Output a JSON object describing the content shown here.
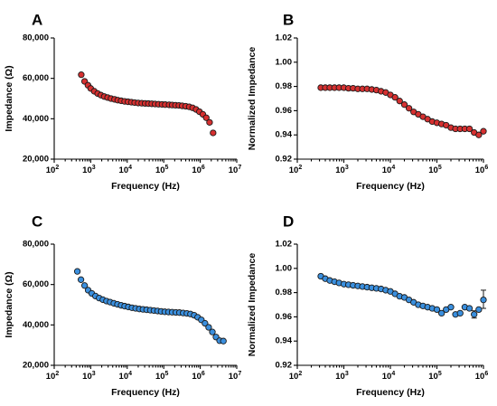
{
  "colors": {
    "red": "#d63030",
    "blue": "#3a8fde",
    "edge": "#1a1a1a"
  },
  "chart_data": [
    {
      "panel": "A",
      "type": "scatter",
      "color": "red",
      "xlabel": "Frequency (Hz)",
      "ylabel": "Impedance (Ω)",
      "xscale": "log",
      "xlim": [
        100,
        10000000
      ],
      "ylim": [
        20000,
        80000
      ],
      "xticks": [
        100,
        1000,
        10000,
        100000,
        1000000,
        10000000
      ],
      "yticks": [
        20000,
        40000,
        60000,
        80000
      ],
      "ytick_labels": [
        "20,000",
        "40,000",
        "60,000",
        "80,000"
      ],
      "points": [
        [
          550,
          61800
        ],
        [
          680,
          58500
        ],
        [
          840,
          56600
        ],
        [
          1000,
          55000
        ],
        [
          1250,
          53600
        ],
        [
          1550,
          52500
        ],
        [
          1900,
          51700
        ],
        [
          2350,
          51000
        ],
        [
          2900,
          50500
        ],
        [
          3600,
          50000
        ],
        [
          4500,
          49600
        ],
        [
          5500,
          49200
        ],
        [
          6800,
          48900
        ],
        [
          8500,
          48600
        ],
        [
          10500,
          48400
        ],
        [
          13000,
          48200
        ],
        [
          16000,
          48000
        ],
        [
          20000,
          47800
        ],
        [
          25000,
          47700
        ],
        [
          31000,
          47600
        ],
        [
          38000,
          47500
        ],
        [
          47000,
          47400
        ],
        [
          58000,
          47300
        ],
        [
          72000,
          47200
        ],
        [
          90000,
          47100
        ],
        [
          110000,
          47000
        ],
        [
          140000,
          46900
        ],
        [
          170000,
          46800
        ],
        [
          210000,
          46700
        ],
        [
          260000,
          46600
        ],
        [
          320000,
          46400
        ],
        [
          400000,
          46200
        ],
        [
          500000,
          45900
        ],
        [
          620000,
          45400
        ],
        [
          770000,
          44600
        ],
        [
          950000,
          43500
        ],
        [
          1180000,
          42200
        ],
        [
          1460000,
          40500
        ],
        [
          1800000,
          38200
        ],
        [
          2250000,
          33000
        ]
      ],
      "error_bars": []
    },
    {
      "panel": "B",
      "type": "scatter",
      "color": "red",
      "xlabel": "Frequency (Hz)",
      "ylabel": "Normalized Impedance",
      "xscale": "log",
      "xlim": [
        100,
        1000000
      ],
      "ylim": [
        0.92,
        1.02
      ],
      "xticks": [
        100,
        1000,
        10000,
        100000,
        1000000
      ],
      "yticks": [
        0.92,
        0.94,
        0.96,
        0.98,
        1.0,
        1.02
      ],
      "ytick_labels": [
        "0.92",
        "0.94",
        "0.96",
        "0.98",
        "1.00",
        "1.02"
      ],
      "points": [
        [
          320,
          0.979
        ],
        [
          400,
          0.979
        ],
        [
          500,
          0.979
        ],
        [
          630,
          0.979
        ],
        [
          790,
          0.979
        ],
        [
          1000,
          0.979
        ],
        [
          1260,
          0.9785
        ],
        [
          1580,
          0.9785
        ],
        [
          2000,
          0.978
        ],
        [
          2510,
          0.978
        ],
        [
          3160,
          0.978
        ],
        [
          3980,
          0.9775
        ],
        [
          5010,
          0.977
        ],
        [
          6310,
          0.976
        ],
        [
          7940,
          0.975
        ],
        [
          10000,
          0.973
        ],
        [
          12600,
          0.971
        ],
        [
          15800,
          0.968
        ],
        [
          20000,
          0.965
        ],
        [
          25100,
          0.962
        ],
        [
          31600,
          0.959
        ],
        [
          39800,
          0.957
        ],
        [
          50100,
          0.955
        ],
        [
          63100,
          0.953
        ],
        [
          79400,
          0.951
        ],
        [
          100000,
          0.95
        ],
        [
          126000,
          0.949
        ],
        [
          158000,
          0.948
        ],
        [
          200000,
          0.946
        ],
        [
          251000,
          0.945
        ],
        [
          316000,
          0.945
        ],
        [
          398000,
          0.945
        ],
        [
          501000,
          0.945
        ],
        [
          631000,
          0.942
        ],
        [
          794000,
          0.94
        ],
        [
          1000000,
          0.943
        ]
      ],
      "error_bars": []
    },
    {
      "panel": "C",
      "type": "scatter",
      "color": "blue",
      "xlabel": "Frequency (Hz)",
      "ylabel": "Impedance (Ω)",
      "xscale": "log",
      "xlim": [
        100,
        10000000
      ],
      "ylim": [
        20000,
        80000
      ],
      "xticks": [
        100,
        1000,
        10000,
        100000,
        1000000,
        10000000
      ],
      "yticks": [
        20000,
        40000,
        60000,
        80000
      ],
      "ytick_labels": [
        "20,000",
        "40,000",
        "60,000",
        "80,000"
      ],
      "points": [
        [
          430,
          66500
        ],
        [
          540,
          62400
        ],
        [
          680,
          59500
        ],
        [
          850,
          57200
        ],
        [
          1070,
          55600
        ],
        [
          1350,
          54300
        ],
        [
          1700,
          53300
        ],
        [
          2150,
          52500
        ],
        [
          2700,
          51800
        ],
        [
          3400,
          51300
        ],
        [
          4300,
          50700
        ],
        [
          5400,
          50200
        ],
        [
          6800,
          49700
        ],
        [
          8500,
          49300
        ],
        [
          10700,
          48900
        ],
        [
          13500,
          48500
        ],
        [
          17000,
          48200
        ],
        [
          21500,
          47900
        ],
        [
          27000,
          47700
        ],
        [
          34000,
          47500
        ],
        [
          43000,
          47300
        ],
        [
          54000,
          47100
        ],
        [
          68000,
          46900
        ],
        [
          85000,
          46700
        ],
        [
          107000,
          46500
        ],
        [
          135000,
          46400
        ],
        [
          170000,
          46300
        ],
        [
          215000,
          46200
        ],
        [
          270000,
          46100
        ],
        [
          340000,
          45900
        ],
        [
          430000,
          45700
        ],
        [
          540000,
          45400
        ],
        [
          680000,
          44800
        ],
        [
          850000,
          43800
        ],
        [
          1070000,
          42500
        ],
        [
          1350000,
          40800
        ],
        [
          1700000,
          38800
        ],
        [
          2150000,
          36500
        ],
        [
          2700000,
          34000
        ],
        [
          3400000,
          32200
        ],
        [
          4300000,
          32000
        ]
      ],
      "error_bars": []
    },
    {
      "panel": "D",
      "type": "scatter",
      "color": "blue",
      "xlabel": "Frequency (Hz)",
      "ylabel": "Normalized Impedance",
      "xscale": "log",
      "xlim": [
        100,
        1000000
      ],
      "ylim": [
        0.92,
        1.02
      ],
      "xticks": [
        100,
        1000,
        10000,
        100000,
        1000000
      ],
      "yticks": [
        0.92,
        0.94,
        0.96,
        0.98,
        1.0,
        1.02
      ],
      "ytick_labels": [
        "0.92",
        "0.94",
        "0.96",
        "0.98",
        "1.00",
        "1.02"
      ],
      "points": [
        [
          320,
          0.9935
        ],
        [
          400,
          0.9915
        ],
        [
          500,
          0.99
        ],
        [
          630,
          0.989
        ],
        [
          790,
          0.988
        ],
        [
          1000,
          0.987
        ],
        [
          1260,
          0.9865
        ],
        [
          1580,
          0.986
        ],
        [
          2000,
          0.9855
        ],
        [
          2510,
          0.985
        ],
        [
          3160,
          0.9845
        ],
        [
          3980,
          0.984
        ],
        [
          5010,
          0.9835
        ],
        [
          6310,
          0.983
        ],
        [
          7940,
          0.982
        ],
        [
          10000,
          0.981
        ],
        [
          12600,
          0.979
        ],
        [
          15800,
          0.977
        ],
        [
          20000,
          0.976
        ],
        [
          25100,
          0.974
        ],
        [
          31600,
          0.972
        ],
        [
          39800,
          0.97
        ],
        [
          50100,
          0.969
        ],
        [
          63100,
          0.968
        ],
        [
          79400,
          0.967
        ],
        [
          100000,
          0.966
        ],
        [
          126000,
          0.963
        ],
        [
          158000,
          0.966
        ],
        [
          200000,
          0.968
        ],
        [
          251000,
          0.962
        ],
        [
          316000,
          0.963
        ],
        [
          398000,
          0.968
        ],
        [
          501000,
          0.967
        ],
        [
          631000,
          0.962
        ],
        [
          794000,
          0.966
        ],
        [
          1000000,
          0.974
        ]
      ],
      "error_bars": [
        {
          "x": 1000000,
          "low": 0.967,
          "high": 0.982
        },
        {
          "x": 631000,
          "low": 0.959,
          "high": 0.965
        }
      ]
    }
  ]
}
